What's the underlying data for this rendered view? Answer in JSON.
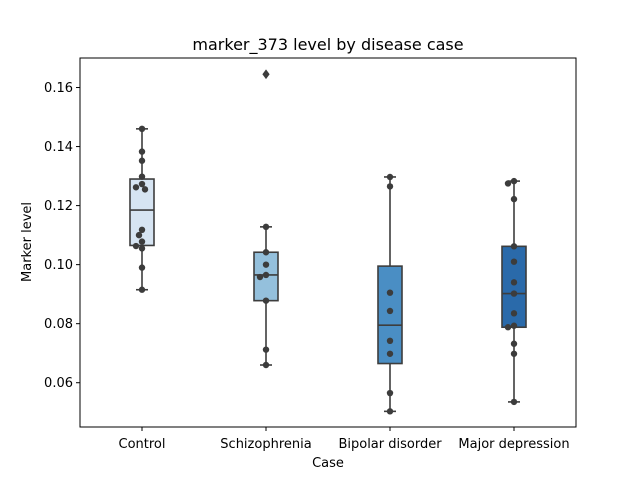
{
  "chart_data": {
    "type": "box",
    "title": "marker_373 level by disease case",
    "xlabel": "Case",
    "ylabel": "Marker level",
    "ylim": [
      0.045,
      0.17
    ],
    "yticks": [
      0.06,
      0.08,
      0.1,
      0.12,
      0.14,
      0.16
    ],
    "ytick_labels": [
      "0.06",
      "0.08",
      "0.10",
      "0.12",
      "0.14",
      "0.16"
    ],
    "grid": false,
    "categories": [
      "Control",
      "Schizophrenia",
      "Bipolar disorder",
      "Major depression"
    ],
    "boxes": [
      {
        "name": "Control",
        "color": "#d6e4f2",
        "whisker_low": 0.0915,
        "q1": 0.1065,
        "median": 0.1185,
        "q3": 0.129,
        "whisker_high": 0.146,
        "outliers": []
      },
      {
        "name": "Schizophrenia",
        "color": "#94c0dc",
        "whisker_low": 0.066,
        "q1": 0.0878,
        "median": 0.0965,
        "q3": 0.1042,
        "whisker_high": 0.1128,
        "outliers": [
          0.1645
        ]
      },
      {
        "name": "Bipolar disorder",
        "color": "#4a8ec4",
        "whisker_low": 0.0503,
        "q1": 0.0665,
        "median": 0.0795,
        "q3": 0.0995,
        "whisker_high": 0.1297,
        "outliers": []
      },
      {
        "name": "Major depression",
        "color": "#2a6aaa",
        "whisker_low": 0.0535,
        "q1": 0.0788,
        "median": 0.0902,
        "q3": 0.1062,
        "whisker_high": 0.1283,
        "outliers": []
      }
    ],
    "points": [
      [
        0.146,
        0.1383,
        0.1352,
        0.1298,
        0.1273,
        0.1262,
        0.1255,
        0.1118,
        0.11,
        0.1078,
        0.1063,
        0.1055,
        0.099,
        0.0915
      ],
      [
        0.1128,
        0.1042,
        0.1,
        0.0965,
        0.0958,
        0.0878,
        0.0712,
        0.066
      ],
      [
        0.1297,
        0.1265,
        0.0905,
        0.0843,
        0.0742,
        0.0698,
        0.0565,
        0.0503
      ],
      [
        0.1283,
        0.1275,
        0.1222,
        0.1062,
        0.101,
        0.094,
        0.0902,
        0.0835,
        0.0793,
        0.0788,
        0.0732,
        0.0698,
        0.0535
      ]
    ],
    "point_color": "#3c3c3c",
    "line_color": "#3d3d3d"
  }
}
